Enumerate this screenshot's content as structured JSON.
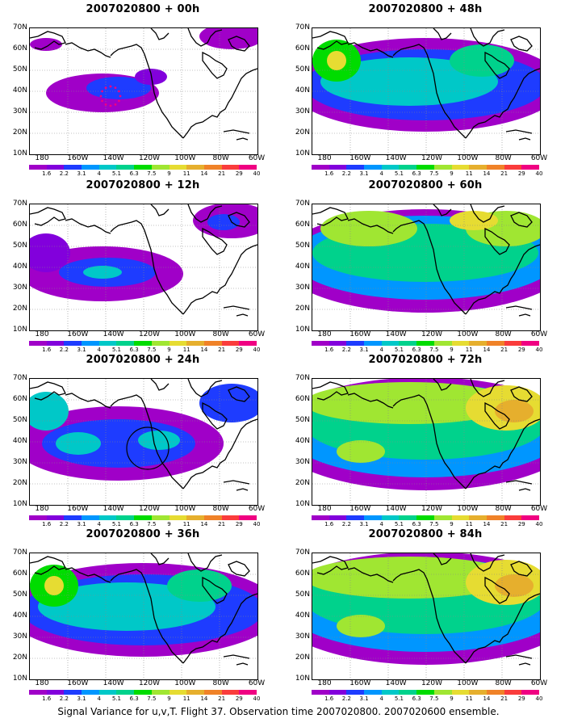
{
  "caption": "Signal Variance for u,v,T. Flight 37. Observation time 2007020800. 2007020600 ensemble.",
  "lat_labels": [
    "70N",
    "60N",
    "50N",
    "40N",
    "30N",
    "20N",
    "10N"
  ],
  "lon_labels": [
    "180",
    "160W",
    "140W",
    "120W",
    "100W",
    "80W",
    "60W"
  ],
  "colorbar": {
    "colors": [
      "#a000c8",
      "#8200dc",
      "#1e3cff",
      "#0096ff",
      "#00c8c8",
      "#00d28c",
      "#00dc00",
      "#a0e632",
      "#e6dc32",
      "#e6af2d",
      "#f08228",
      "#fa3c3c",
      "#f00082"
    ],
    "labels": [
      "1.6",
      "2.2",
      "3.1",
      "4",
      "5.1",
      "6.3",
      "7.5",
      "9",
      "11",
      "14",
      "21",
      "29",
      "40"
    ]
  },
  "panels": [
    {
      "title": "2007020800 + 00h",
      "level": 0,
      "marker": "track"
    },
    {
      "title": "2007020800 + 12h",
      "level": 1,
      "marker": ""
    },
    {
      "title": "2007020800 + 24h",
      "level": 2,
      "marker": "circle"
    },
    {
      "title": "2007020800 + 36h",
      "level": 3,
      "marker": ""
    },
    {
      "title": "2007020800 + 48h",
      "level": 3,
      "marker": ""
    },
    {
      "title": "2007020800 + 60h",
      "level": 4,
      "marker": ""
    },
    {
      "title": "2007020800 + 72h",
      "level": 5,
      "marker": ""
    },
    {
      "title": "2007020800 + 84h",
      "level": 5,
      "marker": ""
    }
  ]
}
